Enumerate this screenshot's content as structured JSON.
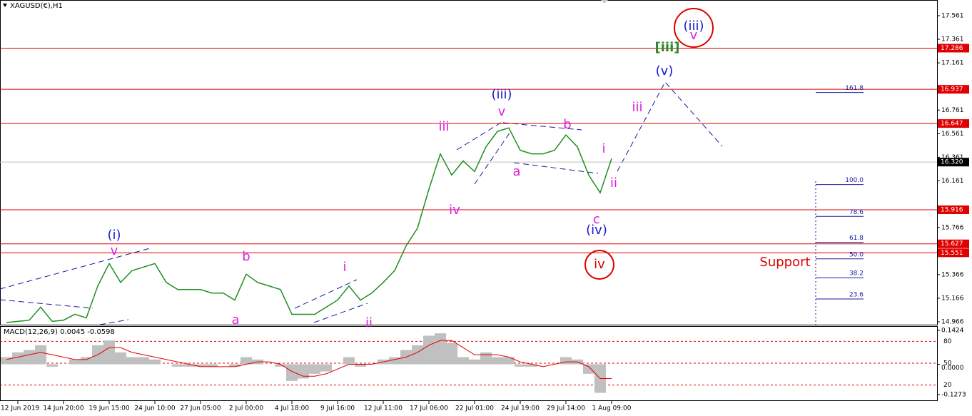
{
  "chart_data": [
    {
      "type": "line",
      "title": "XAGUSD(€),H1",
      "color": "#1f8f1f",
      "categories": [
        null,
        "12 Jun 2019",
        null,
        null,
        null,
        "14 Jun 20:00",
        null,
        null,
        null,
        "19 Jun 15:00",
        null,
        null,
        null,
        "24 Jun 10:00",
        null,
        null,
        null,
        "27 Jun 05:00",
        null,
        null,
        null,
        "2 Jul 00:00",
        null,
        null,
        null,
        "4 Jul 18:00",
        null,
        null,
        null,
        "9 Jul 16:00",
        null,
        null,
        null,
        "12 Jul 11:00",
        null,
        null,
        null,
        "17 Jul 06:00",
        null,
        null,
        null,
        "22 Jul 01:00",
        null,
        null,
        null,
        "24 Jul 19:00",
        null,
        null,
        null,
        "29 Jul 14:00",
        null,
        null,
        null,
        "1 Aug 09:00"
      ],
      "values": [
        14.96,
        14.97,
        14.98,
        15.09,
        14.97,
        14.98,
        15.03,
        15.0,
        15.27,
        15.46,
        15.3,
        15.4,
        15.43,
        15.46,
        15.3,
        15.24,
        15.24,
        15.24,
        15.21,
        15.21,
        15.15,
        15.37,
        15.3,
        15.27,
        15.24,
        15.03,
        15.03,
        15.03,
        15.09,
        15.15,
        15.27,
        15.15,
        15.21,
        15.3,
        15.4,
        15.61,
        15.76,
        16.09,
        16.39,
        16.21,
        16.33,
        16.24,
        16.45,
        16.58,
        16.61,
        16.42,
        16.39,
        16.39,
        16.42,
        16.55,
        16.45,
        16.21,
        16.06,
        16.35
      ],
      "ylim": [
        14.942,
        17.694
      ],
      "yticks": [
        17.561,
        17.361,
        17.161,
        16.761,
        16.561,
        16.361,
        16.161,
        15.766,
        15.366,
        15.166,
        14.966
      ],
      "levels": [
        {
          "value": 17.286,
          "color": "#e00000",
          "label_color": "#e00000"
        },
        {
          "value": 16.937,
          "color": "#e00000",
          "label_color": "#e00000"
        },
        {
          "value": 16.647,
          "color": "#e00000",
          "label_color": "#e00000"
        },
        {
          "value": 16.32,
          "label": "16.320",
          "color": "#c0c0c0",
          "label_color": "#000000"
        },
        {
          "value": 15.916,
          "color": "#e00000",
          "label_color": "#e00000"
        },
        {
          "value": 15.627,
          "color": "#e00000",
          "label_color": "#e00000"
        },
        {
          "value": 15.551,
          "color": "#e00000",
          "label_color": "#e00000"
        }
      ],
      "fib_levels": [
        {
          "ratio": "161.8",
          "price": 16.94
        },
        {
          "ratio": "100.0",
          "price": 16.16
        },
        {
          "ratio": "78.6",
          "price": 15.89
        },
        {
          "ratio": "61.8",
          "price": 15.67
        },
        {
          "ratio": "50.0",
          "price": 15.53
        },
        {
          "ratio": "38.2",
          "price": 15.37
        },
        {
          "ratio": "23.6",
          "price": 15.19
        }
      ],
      "annotations": [
        {
          "text": "(i)",
          "color": "#1a1acc"
        },
        {
          "text": "v",
          "color": "#e01ee0"
        },
        {
          "text": "b",
          "color": "#e01ee0"
        },
        {
          "text": "a",
          "color": "#e01ee0"
        },
        {
          "text": "i",
          "color": "#e01ee0"
        },
        {
          "text": "ii",
          "color": "#e01ee0"
        },
        {
          "text": "iii",
          "color": "#e01ee0"
        },
        {
          "text": "iv",
          "color": "#e01ee0"
        },
        {
          "text": "(iii)",
          "color": "#1a1acc"
        },
        {
          "text": "v",
          "color": "#e01ee0"
        },
        {
          "text": "a",
          "color": "#e01ee0"
        },
        {
          "text": "b",
          "color": "#e01ee0"
        },
        {
          "text": "i",
          "color": "#e01ee0"
        },
        {
          "text": "ii",
          "color": "#e01ee0"
        },
        {
          "text": "c",
          "color": "#e01ee0"
        },
        {
          "text": "(iv)",
          "color": "#1a1acc"
        },
        {
          "text": "iv",
          "color": "#e00000"
        },
        {
          "text": "iii",
          "color": "#e01ee0"
        },
        {
          "text": "(v)",
          "color": "#1a1acc"
        },
        {
          "text": "[iii]",
          "color": "#2a8a2a"
        },
        {
          "text": "(iii)",
          "color": "#1a1acc"
        },
        {
          "text": "v",
          "color": "#e01ee0"
        },
        {
          "text": "Support",
          "color": "#e00000"
        }
      ]
    },
    {
      "type": "bar",
      "title": "MACD(12,26,9) 0.0045 -0.0598",
      "color": "#c0c0c0",
      "signal_color": "#e00000",
      "values": [
        0.03,
        0.05,
        0.06,
        0.08,
        -0.01,
        0.0,
        0.02,
        0.03,
        0.08,
        0.1,
        0.05,
        0.03,
        0.03,
        0.02,
        0.0,
        -0.01,
        -0.01,
        -0.01,
        -0.01,
        0.0,
        -0.01,
        0.03,
        0.02,
        0.0,
        -0.01,
        -0.07,
        -0.06,
        -0.04,
        -0.03,
        0.0,
        0.03,
        -0.01,
        0.0,
        0.02,
        0.03,
        0.06,
        0.08,
        0.12,
        0.13,
        0.09,
        0.03,
        0.02,
        0.05,
        0.03,
        0.03,
        -0.01,
        -0.01,
        0.0,
        0.0,
        0.03,
        0.02,
        -0.04,
        -0.12,
        0.0
      ],
      "signal_values": [
        0.02,
        0.03,
        0.04,
        0.05,
        0.04,
        0.03,
        0.02,
        0.02,
        0.04,
        0.07,
        0.07,
        0.05,
        0.04,
        0.03,
        0.02,
        0.01,
        0.0,
        -0.01,
        -0.01,
        -0.01,
        -0.01,
        0.0,
        0.01,
        0.01,
        0.0,
        -0.03,
        -0.05,
        -0.05,
        -0.04,
        -0.02,
        0.0,
        0.0,
        0.0,
        0.01,
        0.02,
        0.03,
        0.05,
        0.08,
        0.1,
        0.1,
        0.07,
        0.04,
        0.04,
        0.04,
        0.03,
        0.01,
        0.0,
        -0.01,
        0.0,
        0.01,
        0.01,
        -0.01,
        -0.06,
        -0.06
      ],
      "ylim": [
        -0.1483,
        0.1574
      ],
      "yticks": [
        0.1424,
        {
          "value": 0,
          "label": "0.0000"
        },
        -0.1273
      ],
      "y2lim": [
        0,
        100
      ],
      "y2ticks": [
        20,
        50,
        80
      ]
    }
  ]
}
